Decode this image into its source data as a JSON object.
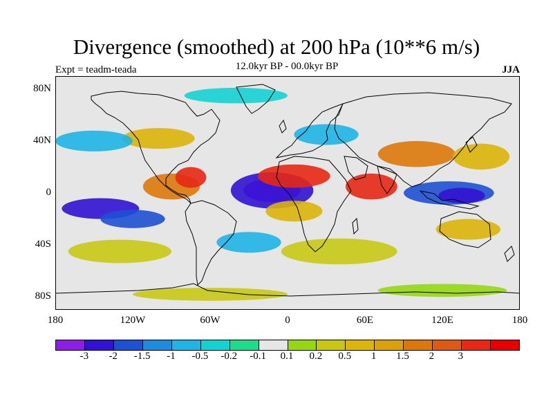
{
  "title": "Divergence (smoothed) at 200 hPa (10**6 m/s)",
  "subtitle_left": "Expt = teadm-teada",
  "subtitle_center": "12.0kyr BP - 00.0kyr BP",
  "subtitle_right": "JJA",
  "map": {
    "projection": "cylindrical equidistant",
    "lon_range": [
      -180,
      180
    ],
    "lat_range": [
      -90,
      90
    ],
    "lat_ticks": [
      {
        "value": 80,
        "label": "80N"
      },
      {
        "value": 40,
        "label": "40N"
      },
      {
        "value": 0,
        "label": "0"
      },
      {
        "value": -40,
        "label": "40S"
      },
      {
        "value": -80,
        "label": "80S"
      }
    ],
    "lon_ticks": [
      {
        "value": -180,
        "label": "180"
      },
      {
        "value": -120,
        "label": "120W"
      },
      {
        "value": -60,
        "label": "60W"
      },
      {
        "value": 0,
        "label": "0"
      },
      {
        "value": 60,
        "label": "60E"
      },
      {
        "value": 120,
        "label": "120E"
      },
      {
        "value": 180,
        "label": "180"
      }
    ],
    "background_fill_color": "#e6e6e6",
    "coastline_color": "#000000",
    "features": [
      {
        "name": "tropical-pacific-neg",
        "lon": -145,
        "lat": -12,
        "rx": 30,
        "ry": 8,
        "level": "-2"
      },
      {
        "name": "central-pacific-neg",
        "lon": -120,
        "lat": -20,
        "rx": 25,
        "ry": 7,
        "level": "-1.5"
      },
      {
        "name": "east-pacific-pos",
        "lon": -90,
        "lat": 5,
        "rx": 22,
        "ry": 10,
        "level": "1.5"
      },
      {
        "name": "caribbean-pos",
        "lon": -75,
        "lat": 12,
        "rx": 12,
        "ry": 8,
        "level": "2"
      },
      {
        "name": "atlantic-neg-max",
        "lon": -12,
        "lat": 2,
        "rx": 22,
        "ry": 9,
        "level": "-3"
      },
      {
        "name": "atlantic-neg-ring",
        "lon": -12,
        "lat": 2,
        "rx": 32,
        "ry": 14,
        "level": "-2"
      },
      {
        "name": "africa-pos",
        "lon": 5,
        "lat": 13,
        "rx": 28,
        "ry": 9,
        "level": "2"
      },
      {
        "name": "south-atlantic-pos",
        "lon": 5,
        "lat": -14,
        "rx": 22,
        "ry": 8,
        "level": "1"
      },
      {
        "name": "indian-ocean-pos",
        "lon": 65,
        "lat": 5,
        "rx": 20,
        "ry": 10,
        "level": "2"
      },
      {
        "name": "maritime-continent-neg",
        "lon": 125,
        "lat": 0,
        "rx": 35,
        "ry": 9,
        "level": "-1.5"
      },
      {
        "name": "west-pacific-neg-max",
        "lon": 135,
        "lat": -2,
        "rx": 18,
        "ry": 6,
        "level": "-2"
      },
      {
        "name": "asia-pos",
        "lon": 100,
        "lat": 30,
        "rx": 30,
        "ry": 10,
        "level": "1.5"
      },
      {
        "name": "east-asia-pos",
        "lon": 150,
        "lat": 28,
        "rx": 22,
        "ry": 10,
        "level": "1"
      },
      {
        "name": "north-america-pos",
        "lon": -100,
        "lat": 42,
        "rx": 28,
        "ry": 8,
        "level": "1"
      },
      {
        "name": "europe-neg",
        "lon": 30,
        "lat": 45,
        "rx": 25,
        "ry": 8,
        "level": "-0.5"
      },
      {
        "name": "north-pacific-neg",
        "lon": -150,
        "lat": 40,
        "rx": 30,
        "ry": 8,
        "level": "-0.5"
      },
      {
        "name": "southern-ocean-pos",
        "lon": 40,
        "lat": -45,
        "rx": 45,
        "ry": 10,
        "level": "0.5"
      },
      {
        "name": "south-pacific-pos",
        "lon": -130,
        "lat": -45,
        "rx": 40,
        "ry": 9,
        "level": "0.5"
      },
      {
        "name": "australia-pos",
        "lon": 140,
        "lat": -28,
        "rx": 25,
        "ry": 8,
        "level": "1"
      },
      {
        "name": "south-atlantic-neg",
        "lon": -30,
        "lat": -38,
        "rx": 25,
        "ry": 8,
        "level": "-0.5"
      },
      {
        "name": "arctic-neg",
        "lon": -40,
        "lat": 75,
        "rx": 40,
        "ry": 6,
        "level": "-0.2"
      },
      {
        "name": "antarctic-pos",
        "lon": -60,
        "lat": -78,
        "rx": 60,
        "ry": 5,
        "level": "0.5"
      },
      {
        "name": "antarctic-pos-east",
        "lon": 120,
        "lat": -75,
        "rx": 50,
        "ry": 5,
        "level": "0.2"
      }
    ]
  },
  "colorbar": {
    "colors": [
      "#8c1ee6",
      "#3212d2",
      "#1e50d2",
      "#1e8cdc",
      "#1eb4e6",
      "#14d2d2",
      "#1edc8c",
      "#e6e6e6",
      "#96d714",
      "#c8c814",
      "#dcb40a",
      "#dca00a",
      "#dc780a",
      "#dc5a14",
      "#e62814",
      "#e60000"
    ],
    "level_colors": {
      "-3": "#8c1ee6",
      "-2": "#3212d2",
      "-1.5": "#1e50d2",
      "-1": "#1e8cdc",
      "-0.5": "#1eb4e6",
      "-0.2": "#14d2d2",
      "0.2": "#96d714",
      "0.5": "#c8c814",
      "1": "#dcb40a",
      "1.5": "#dc780a",
      "2": "#e62814",
      "3": "#e60000"
    },
    "labels": [
      "-3",
      "-2",
      "-1.5",
      "-1",
      "-0.5",
      "-0.2",
      "-0.1",
      "0.1",
      "0.2",
      "0.5",
      "1",
      "1.5",
      "2",
      "3"
    ]
  }
}
